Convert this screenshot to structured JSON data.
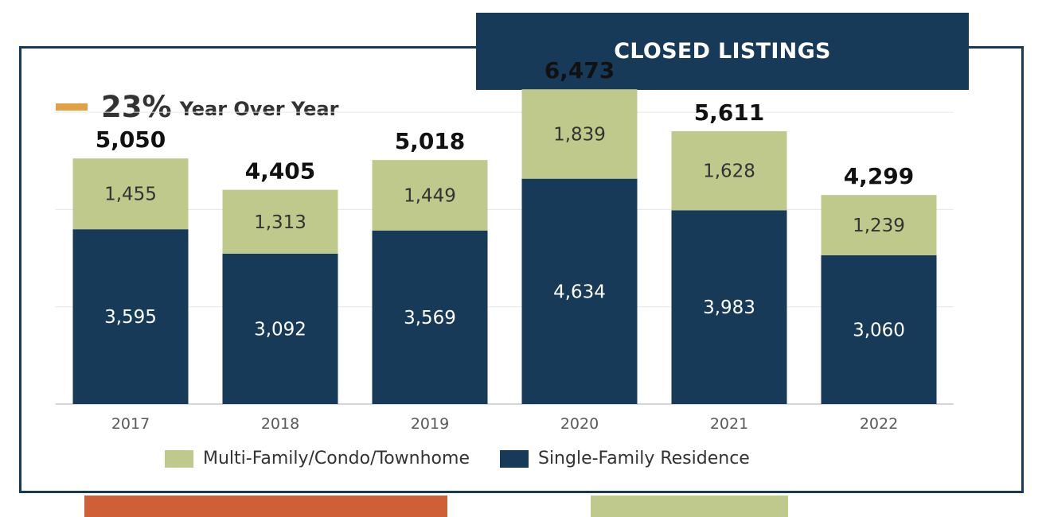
{
  "title": "CLOSED LISTINGS",
  "yoy": {
    "percent": "23%",
    "label": "Year Over Year",
    "indicator_color": "#e3a146"
  },
  "colors": {
    "navy": "#163a58",
    "green": "#bec98b",
    "orange": "#cf5f36",
    "grid": "#e6e6e6"
  },
  "legend": [
    {
      "label": "Multi-Family/Condo/Townhome",
      "color": "#bec98b"
    },
    {
      "label": "Single-Family Residence",
      "color": "#163a58"
    }
  ],
  "chart_data": {
    "type": "bar",
    "stacked": true,
    "categories": [
      "2017",
      "2018",
      "2019",
      "2020",
      "2021",
      "2022"
    ],
    "series": [
      {
        "name": "Single-Family Residence",
        "color": "#163a58",
        "label_color": "#ffffff",
        "values": [
          3595,
          3092,
          3569,
          4634,
          3983,
          3060
        ],
        "labels": [
          "3,595",
          "3,092",
          "3,569",
          "4,634",
          "3,983",
          "3,060"
        ]
      },
      {
        "name": "Multi-Family/Condo/Townhome",
        "color": "#bec98b",
        "label_color": "#333333",
        "values": [
          1455,
          1313,
          1449,
          1839,
          1628,
          1239
        ],
        "labels": [
          "1,455",
          "1,313",
          "1,449",
          "1,839",
          "1,628",
          "1,239"
        ]
      }
    ],
    "totals": [
      5050,
      4405,
      5018,
      6473,
      5611,
      4299
    ],
    "total_labels": [
      "5,050",
      "4,405",
      "5,018",
      "6,473",
      "5,611",
      "4,299"
    ],
    "ylim": [
      0,
      7000
    ],
    "gridlines": [
      2000,
      4000,
      6000
    ],
    "grid": true,
    "legend_position": "bottom"
  }
}
